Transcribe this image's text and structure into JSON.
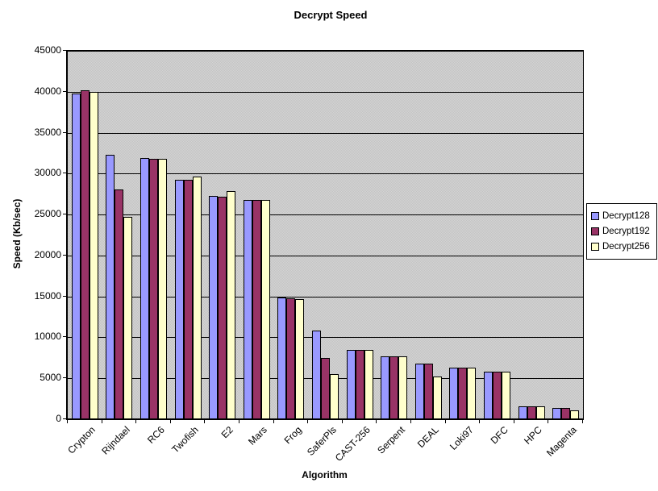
{
  "chart_data": {
    "type": "bar",
    "title": "Decrypt Speed",
    "xlabel": "Algorithm",
    "ylabel": "Speed (Kb/sec)",
    "ylim": [
      0,
      45000
    ],
    "yticks": [
      0,
      5000,
      10000,
      15000,
      20000,
      25000,
      30000,
      35000,
      40000,
      45000
    ],
    "grid": true,
    "legend_position": "right",
    "plot_bg": "#C0C0C0",
    "categories": [
      "Crypton",
      "Rijndael",
      "RC6",
      "Twofish",
      "E2",
      "Mars",
      "Frog",
      "SaferPls",
      "CAST-256",
      "Serpent",
      "DEAL",
      "Loki97",
      "DFC",
      "HPC",
      "Magenta"
    ],
    "series": [
      {
        "name": "Decrypt128",
        "color": "#9999FF",
        "values": [
          39800,
          32300,
          31900,
          29200,
          27300,
          26800,
          14900,
          10800,
          8500,
          7700,
          6800,
          6300,
          5800,
          1600,
          1400
        ]
      },
      {
        "name": "Decrypt192",
        "color": "#993366",
        "values": [
          40200,
          28100,
          31800,
          29200,
          27200,
          26800,
          14800,
          7500,
          8500,
          7700,
          6800,
          6300,
          5800,
          1600,
          1400
        ]
      },
      {
        "name": "Decrypt256",
        "color": "#FFFFCC",
        "values": [
          40000,
          24700,
          31800,
          29600,
          27900,
          26800,
          14700,
          5500,
          8500,
          7700,
          5200,
          6300,
          5800,
          1550,
          1100
        ]
      }
    ]
  }
}
